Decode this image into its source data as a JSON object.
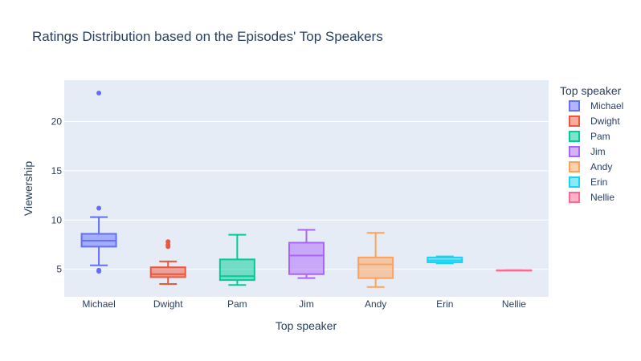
{
  "chart_data": {
    "type": "box",
    "title": "Ratings Distribution based on the Episodes' Top Speakers",
    "xlabel": "Top speaker",
    "ylabel": "Viewership",
    "ylim": [
      2.2,
      24.2
    ],
    "yticks": [
      5,
      10,
      15,
      20
    ],
    "grid": true,
    "legend_title": "Top speaker",
    "legend_position": "right",
    "categories": [
      "Michael",
      "Dwight",
      "Pam",
      "Jim",
      "Andy",
      "Erin",
      "Nellie"
    ],
    "series": [
      {
        "name": "Michael",
        "color": "#636efa",
        "lower_whisker": 5.4,
        "q1": 7.3,
        "median": 7.9,
        "q3": 8.6,
        "upper_whisker": 10.3,
        "outliers": [
          22.9,
          11.2,
          4.9,
          4.8
        ]
      },
      {
        "name": "Dwight",
        "color": "#ef553b",
        "lower_whisker": 3.5,
        "q1": 4.2,
        "median": 4.5,
        "q3": 5.2,
        "upper_whisker": 5.8,
        "outliers": [
          7.8,
          7.5,
          7.3
        ]
      },
      {
        "name": "Pam",
        "color": "#00cc96",
        "lower_whisker": 3.4,
        "q1": 3.9,
        "median": 4.3,
        "q3": 6.0,
        "upper_whisker": 8.5,
        "outliers": []
      },
      {
        "name": "Jim",
        "color": "#ab63fa",
        "lower_whisker": 4.1,
        "q1": 4.5,
        "median": 6.4,
        "q3": 7.7,
        "upper_whisker": 9.0,
        "outliers": []
      },
      {
        "name": "Andy",
        "color": "#ffa15a",
        "lower_whisker": 3.2,
        "q1": 4.1,
        "median": 5.5,
        "q3": 6.2,
        "upper_whisker": 8.7,
        "outliers": []
      },
      {
        "name": "Erin",
        "color": "#19d3f3",
        "lower_whisker": 5.6,
        "q1": 5.7,
        "median": 5.9,
        "q3": 6.2,
        "upper_whisker": 6.3,
        "outliers": []
      },
      {
        "name": "Nellie",
        "color": "#ff6692",
        "lower_whisker": 4.9,
        "q1": 4.9,
        "median": 4.9,
        "q3": 4.9,
        "upper_whisker": 4.9,
        "outliers": []
      }
    ]
  }
}
